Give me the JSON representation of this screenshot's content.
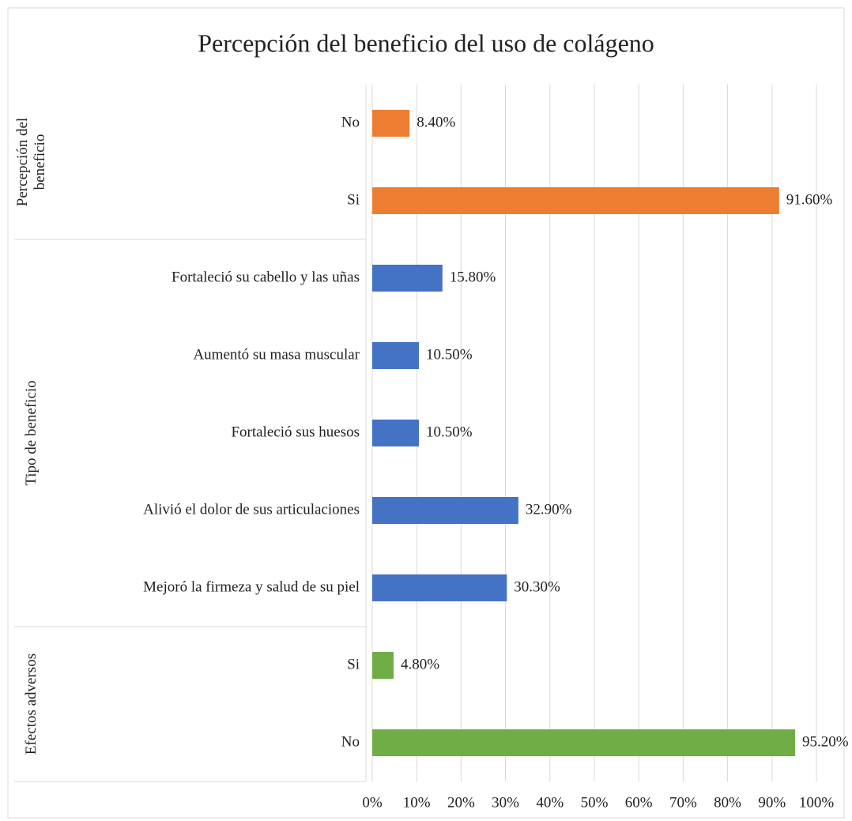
{
  "chart_data": {
    "type": "bar",
    "orientation": "horizontal",
    "title": "Percepción del beneficio del uso de colágeno",
    "groups": [
      {
        "name": "Percepción del beneficio",
        "color": "#ed7d31",
        "categories": [
          "No",
          "Si"
        ],
        "values": [
          8.4,
          91.6
        ],
        "value_labels": [
          "8.40%",
          "91.60%"
        ]
      },
      {
        "name": "Tipo de beneficio",
        "color": "#4472c4",
        "categories": [
          "Fortaleció su cabello y las uñas",
          "Aumentó su masa muscular",
          "Fortaleció sus huesos",
          "Alivió el dolor de sus articulaciones",
          "Mejoró la firmeza y salud de su piel"
        ],
        "values": [
          15.8,
          10.5,
          10.5,
          32.9,
          30.3
        ],
        "value_labels": [
          "15.80%",
          "10.50%",
          "10.50%",
          "32.90%",
          "30.30%"
        ]
      },
      {
        "name": "Efectos adversos",
        "color": "#70ad47",
        "categories": [
          "Si",
          "No"
        ],
        "values": [
          4.8,
          95.2
        ],
        "value_labels": [
          "4.80%",
          "95.20%"
        ]
      }
    ],
    "xlim": [
      0,
      100
    ],
    "xticks": [
      {
        "value": 0,
        "label": "0%"
      },
      {
        "value": 10,
        "label": "10%"
      },
      {
        "value": 20,
        "label": "20%"
      },
      {
        "value": 30,
        "label": "30%"
      },
      {
        "value": 40,
        "label": "40%"
      },
      {
        "value": 50,
        "label": "50%"
      },
      {
        "value": 60,
        "label": "60%"
      },
      {
        "value": 70,
        "label": "70%"
      },
      {
        "value": 80,
        "label": "80%"
      },
      {
        "value": 90,
        "label": "90%"
      },
      {
        "value": 100,
        "label": "100%"
      }
    ],
    "grid": true
  }
}
